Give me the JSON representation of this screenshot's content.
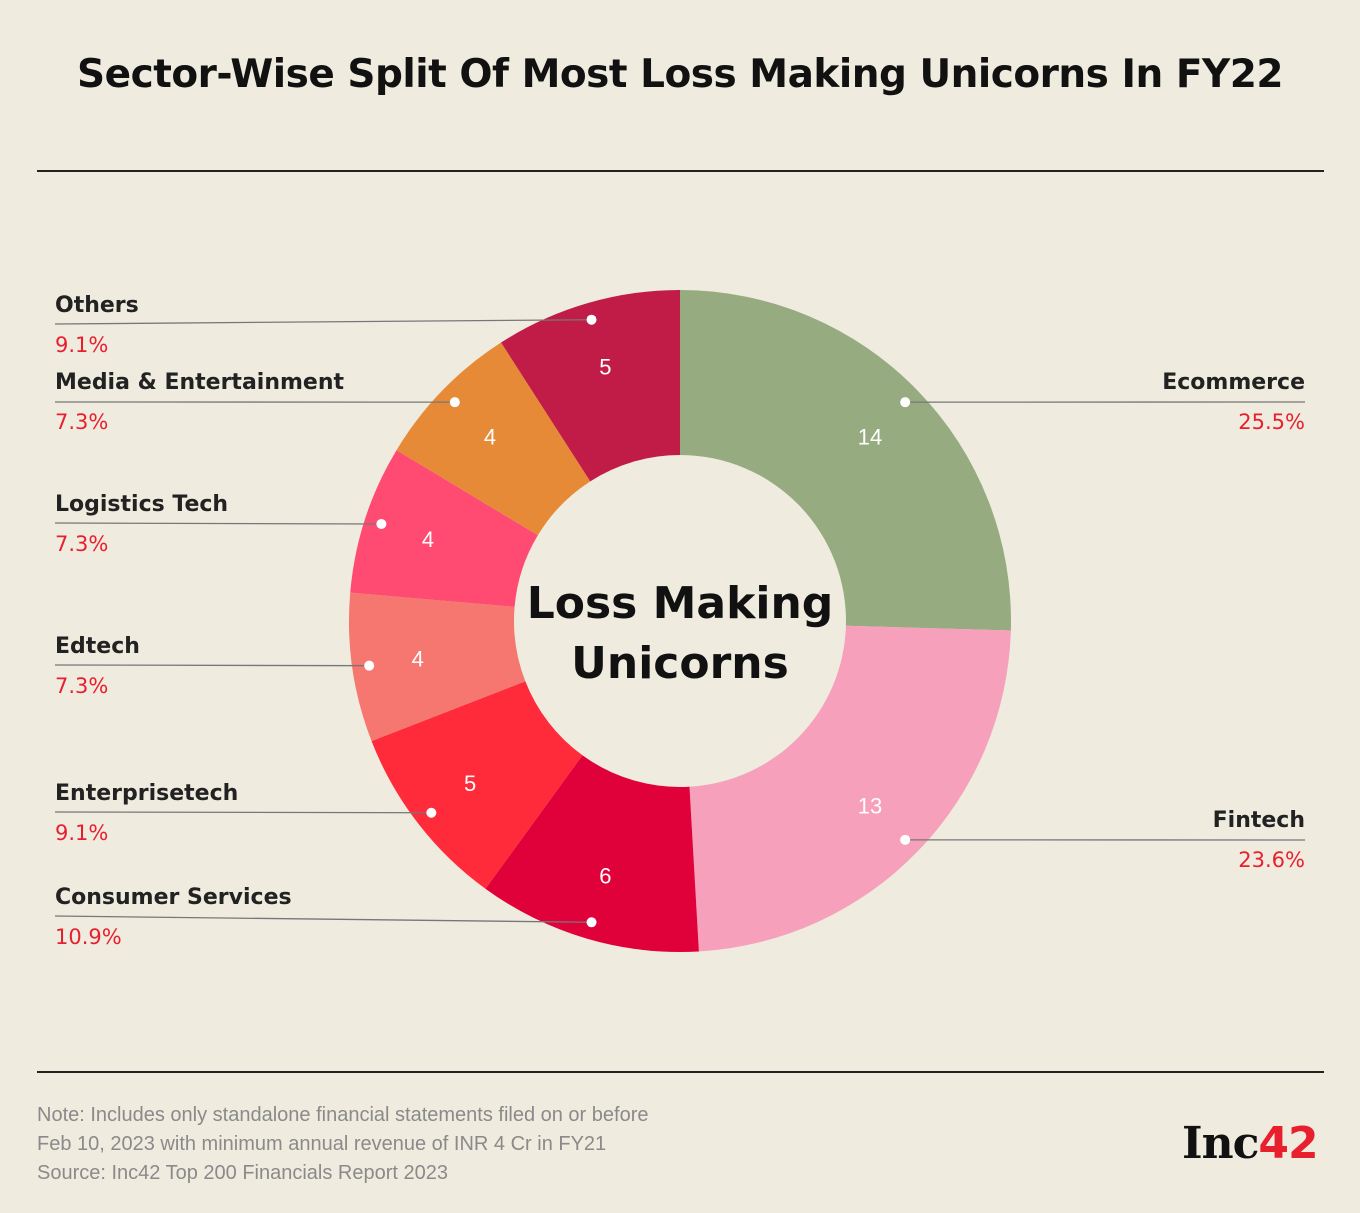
{
  "chart_data": {
    "type": "pie",
    "title": "Sector-Wise Split Of Most Loss Making Unicorns In FY22",
    "center_label": [
      "Loss Making",
      "Unicorns"
    ],
    "slices": [
      {
        "label": "Ecommerce",
        "value": 14,
        "percent": "25.5%",
        "color": "#97ab80"
      },
      {
        "label": "Fintech",
        "value": 13,
        "percent": "23.6%",
        "color": "#f6a0bb"
      },
      {
        "label": "Consumer Services",
        "value": 6,
        "percent": "10.9%",
        "color": "#e0003a"
      },
      {
        "label": "Enterprisetech",
        "value": 5,
        "percent": "9.1%",
        "color": "#ff2a3a"
      },
      {
        "label": "Edtech",
        "value": 4,
        "percent": "7.3%",
        "color": "#f6776f"
      },
      {
        "label": "Logistics Tech",
        "value": 4,
        "percent": "7.3%",
        "color": "#ff4b72"
      },
      {
        "label": "Media & Entertainment",
        "value": 4,
        "percent": "7.3%",
        "color": "#e68a37"
      },
      {
        "label": "Others",
        "value": 5,
        "percent": "9.1%",
        "color": "#c01c47"
      }
    ],
    "legend_placement": "leader-lines"
  },
  "footer": {
    "note_lines": [
      "Note: Includes only standalone financial statements filed on or before",
      "Feb 10, 2023 with minimum annual revenue of INR 4 Cr in FY21",
      "Source: Inc42 Top 200 Financials Report 2023"
    ],
    "logo_text": "Inc",
    "logo_number": "42"
  }
}
